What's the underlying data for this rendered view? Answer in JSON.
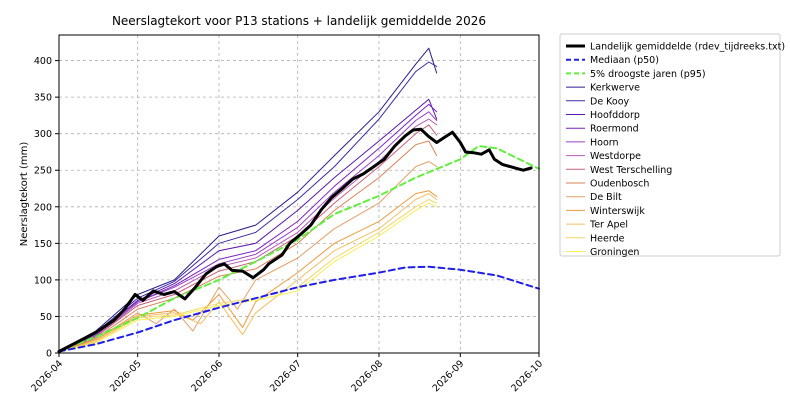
{
  "chart_data": {
    "type": "line",
    "title": "Neerslagtekort voor P13 stations + landelijk gemiddelde 2026",
    "xlabel": "",
    "ylabel": "Neerslagtekort (mm)",
    "x_ticks": [
      "2026-04",
      "2026-05",
      "2026-06",
      "2026-07",
      "2026-08",
      "2026-09",
      "2026-10"
    ],
    "y_ticks": [
      0,
      50,
      100,
      150,
      200,
      250,
      300,
      350,
      400
    ],
    "xlim": [
      "2026-04-01",
      "2026-10-01"
    ],
    "ylim": [
      0,
      435
    ],
    "grid": true,
    "legend_placement": "outside-right",
    "series": [
      {
        "name": "Landelijk gemiddelde (rdev_tijdreeks.txt)",
        "color": "#000000",
        "style": "solid",
        "width": 3,
        "points": [
          [
            "2026-04-01",
            2
          ],
          [
            "2026-04-08",
            15
          ],
          [
            "2026-04-15",
            28
          ],
          [
            "2026-04-22",
            45
          ],
          [
            "2026-04-26",
            60
          ],
          [
            "2026-04-30",
            80
          ],
          [
            "2026-05-03",
            72
          ],
          [
            "2026-05-07",
            85
          ],
          [
            "2026-05-11",
            80
          ],
          [
            "2026-05-15",
            84
          ],
          [
            "2026-05-19",
            74
          ],
          [
            "2026-05-23",
            90
          ],
          [
            "2026-05-27",
            108
          ],
          [
            "2026-05-31",
            118
          ],
          [
            "2026-06-03",
            122
          ],
          [
            "2026-06-06",
            113
          ],
          [
            "2026-06-10",
            112
          ],
          [
            "2026-06-14",
            103
          ],
          [
            "2026-06-18",
            114
          ],
          [
            "2026-06-20",
            122
          ],
          [
            "2026-06-25",
            134
          ],
          [
            "2026-06-28",
            150
          ],
          [
            "2026-07-02",
            162
          ],
          [
            "2026-07-06",
            175
          ],
          [
            "2026-07-10",
            196
          ],
          [
            "2026-07-14",
            213
          ],
          [
            "2026-07-18",
            225
          ],
          [
            "2026-07-22",
            238
          ],
          [
            "2026-07-26",
            245
          ],
          [
            "2026-07-30",
            255
          ],
          [
            "2026-08-03",
            265
          ],
          [
            "2026-08-07",
            283
          ],
          [
            "2026-08-11",
            297
          ],
          [
            "2026-08-14",
            305
          ],
          [
            "2026-08-17",
            306
          ],
          [
            "2026-08-20",
            296
          ],
          [
            "2026-08-23",
            288
          ],
          [
            "2026-08-26",
            295
          ],
          [
            "2026-08-29",
            302
          ],
          [
            "2026-09-01",
            288
          ],
          [
            "2026-09-03",
            275
          ],
          [
            "2026-09-06",
            274
          ],
          [
            "2026-09-09",
            272
          ],
          [
            "2026-09-12",
            278
          ],
          [
            "2026-09-14",
            265
          ],
          [
            "2026-09-17",
            258
          ],
          [
            "2026-09-20",
            255
          ],
          [
            "2026-09-23",
            252
          ],
          [
            "2026-09-25",
            250
          ],
          [
            "2026-09-28",
            253
          ]
        ]
      },
      {
        "name": "Mediaan (p50)",
        "color": "#1f1fe8",
        "style": "dashed",
        "width": 2,
        "points": [
          [
            "2026-04-01",
            2
          ],
          [
            "2026-04-15",
            12
          ],
          [
            "2026-05-01",
            28
          ],
          [
            "2026-05-15",
            45
          ],
          [
            "2026-06-01",
            62
          ],
          [
            "2026-06-15",
            75
          ],
          [
            "2026-07-01",
            90
          ],
          [
            "2026-07-15",
            100
          ],
          [
            "2026-08-01",
            110
          ],
          [
            "2026-08-11",
            117
          ],
          [
            "2026-08-20",
            118
          ],
          [
            "2026-09-01",
            114
          ],
          [
            "2026-09-15",
            106
          ],
          [
            "2026-10-01",
            88
          ]
        ]
      },
      {
        "name": "5% droogste jaren (p95)",
        "color": "#5ef03a",
        "style": "dashed",
        "width": 2,
        "points": [
          [
            "2026-04-01",
            3
          ],
          [
            "2026-04-15",
            22
          ],
          [
            "2026-05-01",
            48
          ],
          [
            "2026-05-15",
            75
          ],
          [
            "2026-06-01",
            100
          ],
          [
            "2026-06-15",
            125
          ],
          [
            "2026-07-01",
            155
          ],
          [
            "2026-07-15",
            190
          ],
          [
            "2026-08-01",
            215
          ],
          [
            "2026-08-15",
            240
          ],
          [
            "2026-09-01",
            265
          ],
          [
            "2026-09-08",
            283
          ],
          [
            "2026-09-15",
            280
          ],
          [
            "2026-10-01",
            252
          ]
        ]
      },
      {
        "name": "Kerkwerve",
        "color": "#2b1d8f",
        "style": "solid",
        "width": 1,
        "points": [
          [
            "2026-04-01",
            2
          ],
          [
            "2026-04-15",
            30
          ],
          [
            "2026-05-01",
            80
          ],
          [
            "2026-05-15",
            100
          ],
          [
            "2026-06-01",
            160
          ],
          [
            "2026-06-15",
            175
          ],
          [
            "2026-07-01",
            220
          ],
          [
            "2026-07-15",
            270
          ],
          [
            "2026-08-01",
            330
          ],
          [
            "2026-08-15",
            395
          ],
          [
            "2026-08-20",
            417
          ],
          [
            "2026-08-23",
            383
          ]
        ]
      },
      {
        "name": "De Kooy",
        "color": "#3b2aa8",
        "style": "solid",
        "width": 1,
        "points": [
          [
            "2026-04-01",
            2
          ],
          [
            "2026-04-15",
            28
          ],
          [
            "2026-05-01",
            75
          ],
          [
            "2026-05-15",
            98
          ],
          [
            "2026-06-01",
            150
          ],
          [
            "2026-06-15",
            165
          ],
          [
            "2026-07-01",
            210
          ],
          [
            "2026-07-15",
            255
          ],
          [
            "2026-08-01",
            320
          ],
          [
            "2026-08-15",
            385
          ],
          [
            "2026-08-20",
            398
          ],
          [
            "2026-08-23",
            392
          ]
        ]
      },
      {
        "name": "Hoofddorp",
        "color": "#5a18b0",
        "style": "solid",
        "width": 1,
        "points": [
          [
            "2026-04-01",
            2
          ],
          [
            "2026-04-15",
            26
          ],
          [
            "2026-05-01",
            72
          ],
          [
            "2026-05-15",
            95
          ],
          [
            "2026-06-01",
            140
          ],
          [
            "2026-06-15",
            150
          ],
          [
            "2026-07-01",
            195
          ],
          [
            "2026-07-15",
            240
          ],
          [
            "2026-08-01",
            290
          ],
          [
            "2026-08-15",
            332
          ],
          [
            "2026-08-20",
            347
          ],
          [
            "2026-08-23",
            320
          ]
        ]
      },
      {
        "name": "Roermond",
        "color": "#7a22c2",
        "style": "solid",
        "width": 1,
        "points": [
          [
            "2026-04-01",
            2
          ],
          [
            "2026-04-15",
            24
          ],
          [
            "2026-05-01",
            70
          ],
          [
            "2026-05-15",
            92
          ],
          [
            "2026-06-01",
            128
          ],
          [
            "2026-06-15",
            140
          ],
          [
            "2026-07-01",
            180
          ],
          [
            "2026-07-15",
            228
          ],
          [
            "2026-08-01",
            280
          ],
          [
            "2026-08-15",
            325
          ],
          [
            "2026-08-20",
            340
          ],
          [
            "2026-08-23",
            330
          ]
        ]
      },
      {
        "name": "Hoorn",
        "color": "#9a3fc8",
        "style": "solid",
        "width": 1,
        "points": [
          [
            "2026-04-01",
            2
          ],
          [
            "2026-04-15",
            24
          ],
          [
            "2026-05-01",
            70
          ],
          [
            "2026-05-15",
            90
          ],
          [
            "2026-06-01",
            122
          ],
          [
            "2026-06-15",
            135
          ],
          [
            "2026-07-01",
            172
          ],
          [
            "2026-07-15",
            220
          ],
          [
            "2026-08-01",
            270
          ],
          [
            "2026-08-15",
            318
          ],
          [
            "2026-08-20",
            330
          ],
          [
            "2026-08-23",
            318
          ]
        ]
      },
      {
        "name": "Westdorpe",
        "color": "#b65ab8",
        "style": "solid",
        "width": 1,
        "points": [
          [
            "2026-04-01",
            2
          ],
          [
            "2026-04-15",
            22
          ],
          [
            "2026-05-01",
            68
          ],
          [
            "2026-05-15",
            85
          ],
          [
            "2026-06-01",
            118
          ],
          [
            "2026-06-15",
            130
          ],
          [
            "2026-07-01",
            165
          ],
          [
            "2026-07-15",
            212
          ],
          [
            "2026-08-01",
            262
          ],
          [
            "2026-08-15",
            310
          ],
          [
            "2026-08-20",
            320
          ],
          [
            "2026-08-23",
            312
          ]
        ]
      },
      {
        "name": "West Terschelling",
        "color": "#c8607a",
        "style": "solid",
        "width": 1,
        "points": [
          [
            "2026-04-01",
            2
          ],
          [
            "2026-04-15",
            22
          ],
          [
            "2026-05-01",
            65
          ],
          [
            "2026-05-15",
            80
          ],
          [
            "2026-06-01",
            112
          ],
          [
            "2026-06-15",
            125
          ],
          [
            "2026-07-01",
            160
          ],
          [
            "2026-07-15",
            205
          ],
          [
            "2026-08-01",
            255
          ],
          [
            "2026-08-15",
            300
          ],
          [
            "2026-08-20",
            312
          ],
          [
            "2026-08-23",
            298
          ]
        ]
      },
      {
        "name": "Oudenbosch",
        "color": "#d8825a",
        "style": "solid",
        "width": 1,
        "points": [
          [
            "2026-04-01",
            2
          ],
          [
            "2026-04-15",
            20
          ],
          [
            "2026-05-01",
            60
          ],
          [
            "2026-05-15",
            75
          ],
          [
            "2026-06-01",
            105
          ],
          [
            "2026-06-15",
            115
          ],
          [
            "2026-07-01",
            150
          ],
          [
            "2026-07-15",
            195
          ],
          [
            "2026-08-01",
            240
          ],
          [
            "2026-08-15",
            285
          ],
          [
            "2026-08-20",
            290
          ],
          [
            "2026-08-23",
            270
          ]
        ]
      },
      {
        "name": "De Bilt",
        "color": "#e3a06a",
        "style": "solid",
        "width": 1,
        "points": [
          [
            "2026-04-01",
            2
          ],
          [
            "2026-04-15",
            18
          ],
          [
            "2026-05-01",
            55
          ],
          [
            "2026-05-08",
            40
          ],
          [
            "2026-05-15",
            60
          ],
          [
            "2026-05-22",
            30
          ],
          [
            "2026-06-01",
            90
          ],
          [
            "2026-06-08",
            60
          ],
          [
            "2026-06-15",
            100
          ],
          [
            "2026-07-01",
            130
          ],
          [
            "2026-07-15",
            170
          ],
          [
            "2026-08-01",
            205
          ],
          [
            "2026-08-15",
            255
          ],
          [
            "2026-08-20",
            262
          ],
          [
            "2026-08-23",
            255
          ]
        ]
      },
      {
        "name": "Winterswijk",
        "color": "#ef9a3e",
        "style": "solid",
        "width": 1,
        "points": [
          [
            "2026-04-01",
            2
          ],
          [
            "2026-04-15",
            18
          ],
          [
            "2026-05-01",
            52
          ],
          [
            "2026-05-15",
            58
          ],
          [
            "2026-05-22",
            45
          ],
          [
            "2026-06-01",
            80
          ],
          [
            "2026-06-10",
            35
          ],
          [
            "2026-06-15",
            70
          ],
          [
            "2026-07-01",
            110
          ],
          [
            "2026-07-15",
            150
          ],
          [
            "2026-08-01",
            180
          ],
          [
            "2026-08-15",
            218
          ],
          [
            "2026-08-20",
            222
          ],
          [
            "2026-08-23",
            214
          ]
        ]
      },
      {
        "name": "Ter Apel",
        "color": "#f3bf63",
        "style": "solid",
        "width": 1,
        "points": [
          [
            "2026-04-01",
            2
          ],
          [
            "2026-04-15",
            16
          ],
          [
            "2026-05-01",
            50
          ],
          [
            "2026-05-15",
            55
          ],
          [
            "2026-05-25",
            40
          ],
          [
            "2026-06-01",
            70
          ],
          [
            "2026-06-10",
            25
          ],
          [
            "2026-06-15",
            55
          ],
          [
            "2026-07-01",
            100
          ],
          [
            "2026-07-15",
            140
          ],
          [
            "2026-08-01",
            170
          ],
          [
            "2026-08-15",
            210
          ],
          [
            "2026-08-20",
            218
          ],
          [
            "2026-08-23",
            210
          ]
        ]
      },
      {
        "name": "Heerde",
        "color": "#f6d66a",
        "style": "solid",
        "width": 1,
        "points": [
          [
            "2026-04-01",
            2
          ],
          [
            "2026-04-15",
            15
          ],
          [
            "2026-05-01",
            48
          ],
          [
            "2026-05-15",
            52
          ],
          [
            "2026-06-01",
            68
          ],
          [
            "2026-06-15",
            75
          ],
          [
            "2026-07-01",
            90
          ],
          [
            "2026-07-15",
            130
          ],
          [
            "2026-08-01",
            165
          ],
          [
            "2026-08-15",
            200
          ],
          [
            "2026-08-20",
            210
          ],
          [
            "2026-08-23",
            205
          ]
        ]
      },
      {
        "name": "Groningen",
        "color": "#f6ee55",
        "style": "solid",
        "width": 1,
        "points": [
          [
            "2026-04-01",
            2
          ],
          [
            "2026-04-15",
            14
          ],
          [
            "2026-05-01",
            45
          ],
          [
            "2026-05-15",
            50
          ],
          [
            "2026-06-01",
            65
          ],
          [
            "2026-06-15",
            72
          ],
          [
            "2026-07-01",
            85
          ],
          [
            "2026-07-15",
            125
          ],
          [
            "2026-08-01",
            160
          ],
          [
            "2026-08-15",
            195
          ],
          [
            "2026-08-20",
            205
          ],
          [
            "2026-08-23",
            200
          ]
        ]
      }
    ]
  }
}
